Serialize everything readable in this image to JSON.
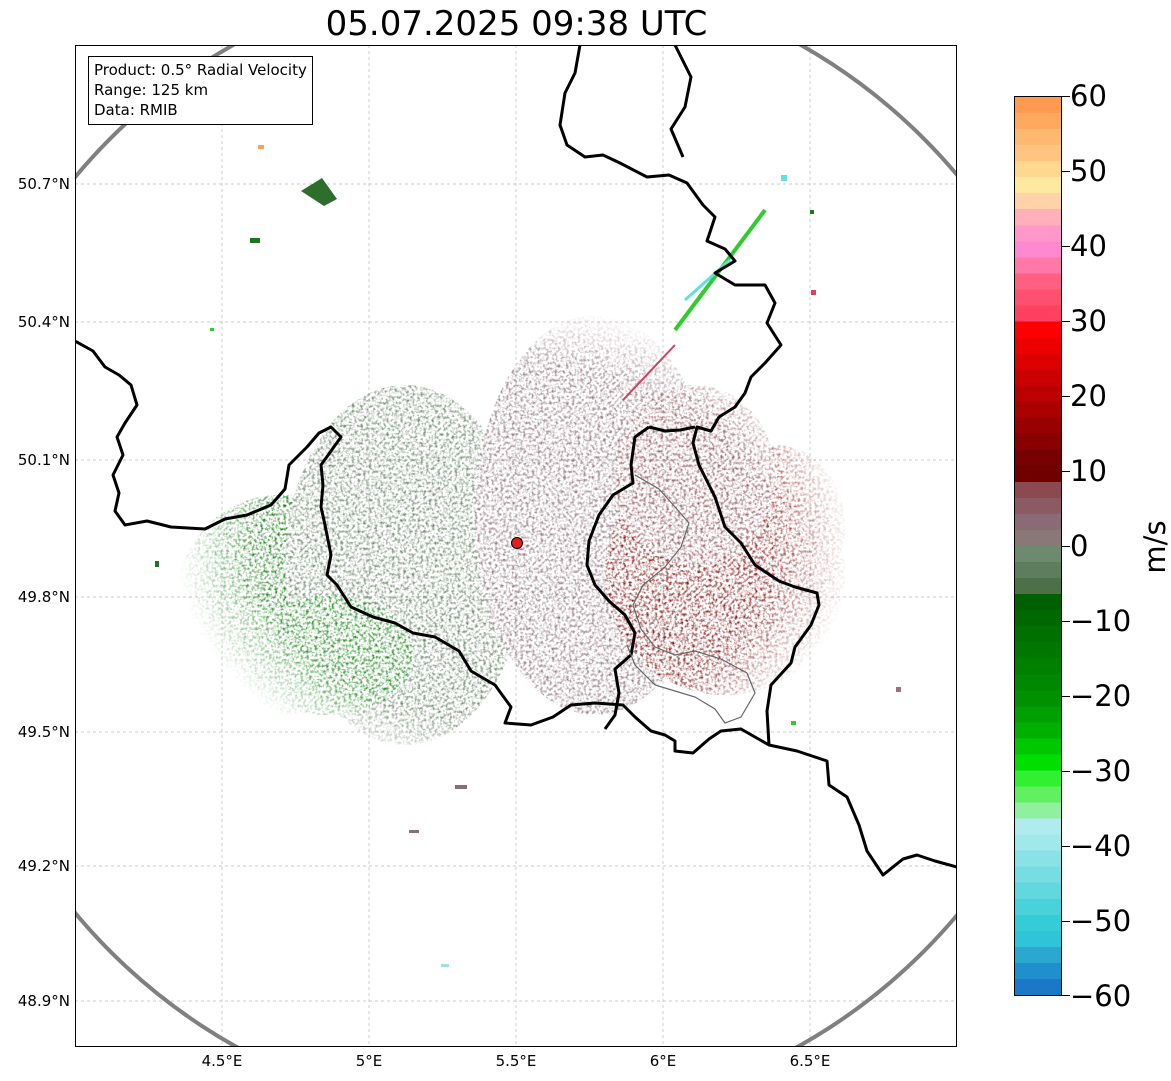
{
  "title": "05.07.2025 09:38 UTC",
  "info_box": {
    "product": "Product: 0.5° Radial Velocity",
    "range": "Range: 125 km",
    "source": "Data: RMIB"
  },
  "map": {
    "lon_ticks": [
      "4.5°E",
      "5°E",
      "5.5°E",
      "6°E",
      "6.5°E"
    ],
    "lat_ticks": [
      "50.7°N",
      "50.4°N",
      "50.1°N",
      "49.8°N",
      "49.5°N",
      "49.2°N",
      "48.9°N"
    ],
    "radar_site": {
      "lon": 5.505,
      "lat": 49.914
    },
    "range_ring_km": 125,
    "extent": {
      "lon_min": 4.0,
      "lon_max": 7.0,
      "lat_min": 48.8,
      "lat_max": 51.0
    }
  },
  "colorbar": {
    "unit": "m/s",
    "min": -60,
    "max": 60,
    "tick_labels": [
      "60",
      "50",
      "40",
      "30",
      "20",
      "10",
      "0",
      "−10",
      "−20",
      "−30",
      "−40",
      "−50",
      "−60"
    ]
  },
  "colors": {
    "approach_strong": "#006400",
    "approach_weak": "#5a7d5a",
    "recede_weak": "#8a6a72",
    "recede_strong": "#780000",
    "radar_marker": "#e02020",
    "range_ring": "#808080"
  }
}
